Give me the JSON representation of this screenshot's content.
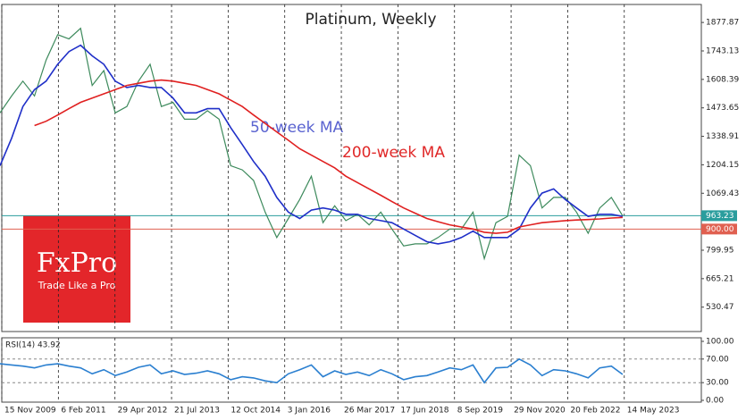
{
  "chart_data": [
    {
      "type": "line",
      "title": "Platinum, Weekly",
      "x": [
        "2009-11",
        "2010-02",
        "2010-05",
        "2010-08",
        "2010-11",
        "2011-02",
        "2011-05",
        "2011-08",
        "2011-11",
        "2012-02",
        "2012-05",
        "2012-08",
        "2012-11",
        "2013-02",
        "2013-05",
        "2013-08",
        "2013-11",
        "2014-02",
        "2014-05",
        "2014-08",
        "2014-11",
        "2015-02",
        "2015-05",
        "2015-08",
        "2015-11",
        "2016-02",
        "2016-05",
        "2016-08",
        "2016-11",
        "2017-02",
        "2017-05",
        "2017-08",
        "2017-11",
        "2018-02",
        "2018-05",
        "2018-08",
        "2018-11",
        "2019-02",
        "2019-05",
        "2019-08",
        "2019-11",
        "2020-02",
        "2020-05",
        "2020-08",
        "2020-11",
        "2021-02",
        "2021-05",
        "2021-08",
        "2021-11",
        "2022-02",
        "2022-05",
        "2022-08",
        "2022-11",
        "2023-02",
        "2023-05"
      ],
      "series": [
        {
          "color": "#3d8a5c",
          "values": [
            1450,
            1530,
            1600,
            1530,
            1700,
            1820,
            1800,
            1850,
            1580,
            1650,
            1450,
            1480,
            1600,
            1680,
            1480,
            1500,
            1420,
            1420,
            1460,
            1420,
            1200,
            1180,
            1130,
            980,
            860,
            950,
            1040,
            1150,
            930,
            1010,
            940,
            970,
            920,
            980,
            900,
            820,
            830,
            830,
            860,
            900,
            900,
            980,
            760,
            930,
            960,
            1250,
            1200,
            1000,
            1050,
            1050,
            980,
            880,
            1000,
            1050,
            963.23
          ]
        },
        {
          "name": "50-week MA",
          "color": "#1f2fc8",
          "values": [
            1200,
            1330,
            1480,
            1560,
            1600,
            1680,
            1740,
            1770,
            1720,
            1680,
            1600,
            1570,
            1580,
            1570,
            1570,
            1520,
            1450,
            1450,
            1470,
            1470,
            1380,
            1300,
            1220,
            1150,
            1050,
            980,
            950,
            990,
            1000,
            990,
            970,
            970,
            950,
            940,
            930,
            900,
            870,
            840,
            830,
            840,
            860,
            890,
            860,
            860,
            860,
            900,
            1000,
            1070,
            1090,
            1040,
            1000,
            960,
            970,
            970,
            960
          ]
        },
        {
          "name": "200-week MA",
          "color": "#e02020",
          "values": [
            null,
            null,
            null,
            1390,
            1410,
            1440,
            1470,
            1500,
            1520,
            1540,
            1560,
            1580,
            1590,
            1600,
            1605,
            1600,
            1590,
            1580,
            1560,
            1540,
            1510,
            1480,
            1440,
            1400,
            1360,
            1320,
            1280,
            1250,
            1220,
            1190,
            1150,
            1120,
            1090,
            1060,
            1030,
            1000,
            975,
            950,
            935,
            920,
            910,
            900,
            885,
            880,
            885,
            910,
            920,
            930,
            935,
            940,
            943,
            945,
            948,
            952,
            955
          ]
        }
      ],
      "hlines": [
        {
          "value": 963.23,
          "label": "963.23",
          "color": "#2a9d9d"
        },
        {
          "value": 900,
          "label": "900.00",
          "color": "#e06050"
        }
      ],
      "xlim": [
        "2009-11-15",
        "2025-01-13"
      ],
      "xticks": [
        {
          "value": "2009-11-15",
          "label": "15 Nov 2009"
        },
        {
          "value": "2011-02-06",
          "label": "6 Feb 2011"
        },
        {
          "value": "2012-04-29",
          "label": "29 Apr 2012"
        },
        {
          "value": "2013-07-21",
          "label": "21 Jul 2013"
        },
        {
          "value": "2014-10-12",
          "label": "12 Oct 2014"
        },
        {
          "value": "2016-01-03",
          "label": "3 Jan 2016"
        },
        {
          "value": "2017-03-26",
          "label": "26 Mar 2017"
        },
        {
          "value": "2018-06-17",
          "label": "17 Jun 2018"
        },
        {
          "value": "2019-09-08",
          "label": "8 Sep 2019"
        },
        {
          "value": "2020-11-29",
          "label": "29 Nov 2020"
        },
        {
          "value": "2022-02-20",
          "label": "20 Feb 2022"
        },
        {
          "value": "2023-05-14",
          "label": "14 May 2023"
        }
      ],
      "ylim": [
        415,
        1963
      ],
      "yticks": [
        530.47,
        665.21,
        799.95,
        1069.43,
        1204.15,
        1338.91,
        1473.65,
        1608.39,
        1743.13,
        1877.87
      ]
    },
    {
      "type": "line",
      "title": "RSI(14) 43.92",
      "series": [
        {
          "color": "#2a7fd0",
          "values": [
            62,
            60,
            58,
            55,
            60,
            62,
            58,
            55,
            45,
            52,
            42,
            48,
            56,
            60,
            45,
            50,
            44,
            46,
            50,
            45,
            35,
            40,
            38,
            33,
            30,
            45,
            52,
            60,
            40,
            50,
            44,
            48,
            42,
            52,
            45,
            35,
            40,
            42,
            48,
            55,
            52,
            60,
            30,
            55,
            56,
            70,
            60,
            42,
            52,
            50,
            45,
            38,
            55,
            58,
            43.92
          ]
        }
      ],
      "ylim": [
        0,
        100
      ],
      "yticks": [
        {
          "value": 0,
          "label": "0.00"
        },
        {
          "value": 30,
          "label": "30.00"
        },
        {
          "value": 70,
          "label": "70.00"
        },
        {
          "value": 100,
          "label": "100.00"
        }
      ]
    }
  ],
  "logo": {
    "name": "FxPro",
    "tagline": "Trade Like a Pro"
  }
}
